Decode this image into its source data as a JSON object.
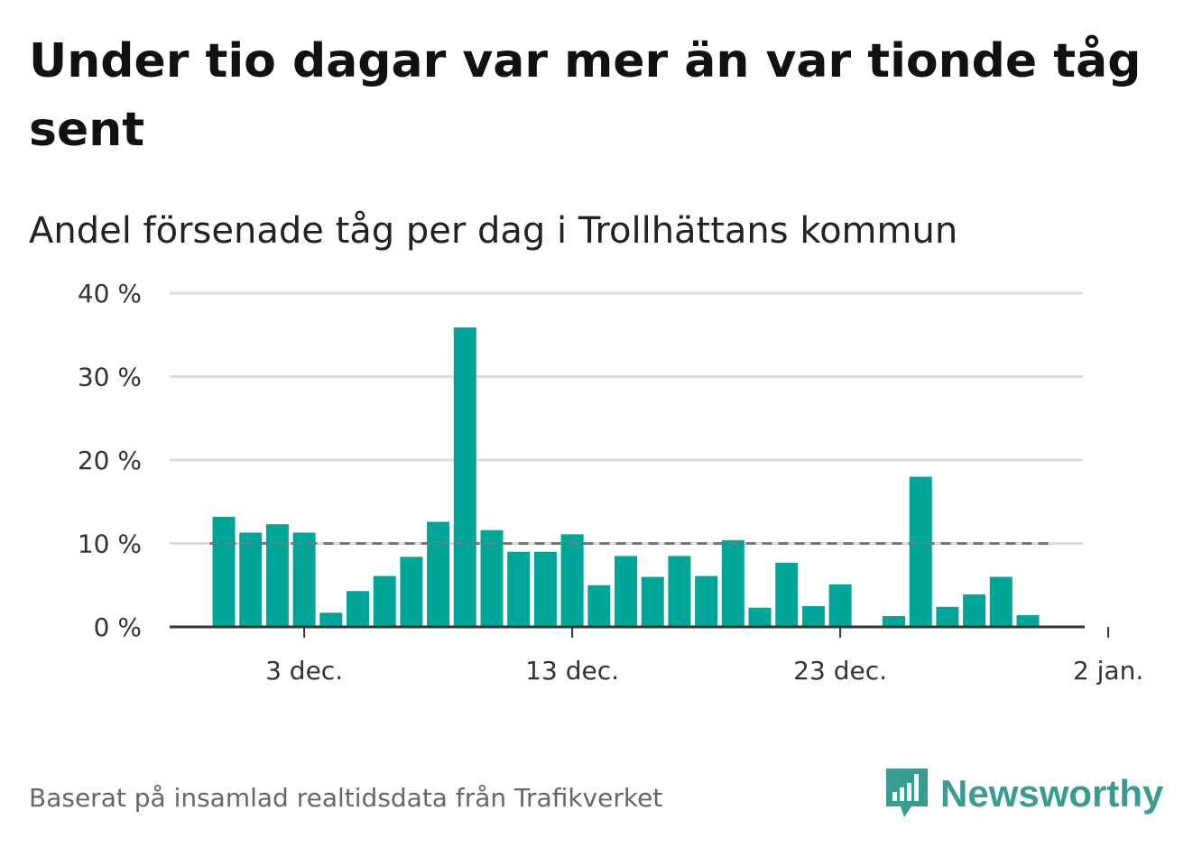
{
  "title": "Under tio dagar var mer än var tionde tåg sent",
  "subtitle": "Andel försenade tåg per dag i Trollhättans kommun",
  "source": "Baserat på insamlad realtidsdata från Trafikverket",
  "logo": {
    "text": "Newsworthy",
    "icon": "newsworthy-logo-icon",
    "color": "#3a9b90"
  },
  "colors": {
    "bar": "#00a59a",
    "reference": "#777777",
    "grid": "#dddddd",
    "axis": "#333333"
  },
  "chart_data": {
    "type": "bar",
    "x": [
      "2023-11-30",
      "2023-12-01",
      "2023-12-02",
      "2023-12-03",
      "2023-12-04",
      "2023-12-05",
      "2023-12-06",
      "2023-12-07",
      "2023-12-08",
      "2023-12-09",
      "2023-12-10",
      "2023-12-11",
      "2023-12-12",
      "2023-12-13",
      "2023-12-14",
      "2023-12-15",
      "2023-12-16",
      "2023-12-17",
      "2023-12-18",
      "2023-12-19",
      "2023-12-20",
      "2023-12-21",
      "2023-12-22",
      "2023-12-23",
      "2023-12-24",
      "2023-12-25",
      "2023-12-26",
      "2023-12-27",
      "2023-12-28",
      "2023-12-29",
      "2023-12-30",
      "2023-12-31"
    ],
    "values": [
      13.2,
      11.3,
      12.3,
      11.3,
      1.7,
      4.3,
      6.1,
      8.4,
      12.6,
      35.9,
      11.6,
      9.0,
      9.0,
      11.1,
      5.0,
      8.5,
      6.0,
      8.5,
      6.1,
      10.4,
      2.3,
      7.7,
      2.5,
      5.1,
      null,
      1.3,
      18.0,
      2.4,
      3.9,
      6.0,
      1.4,
      null
    ],
    "reference_line": 10,
    "ylim": [
      0,
      40
    ],
    "yticks": [
      0,
      10,
      20,
      30,
      40
    ],
    "ytick_labels": [
      "0 %",
      "10 %",
      "20 %",
      "30 %",
      "40 %"
    ],
    "xticks": [
      "2023-12-03",
      "2023-12-13",
      "2023-12-23",
      "2024-01-02"
    ],
    "xtick_labels": [
      "3 dec.",
      "13 dec.",
      "23 dec.",
      "2 jan."
    ],
    "grid": true
  }
}
